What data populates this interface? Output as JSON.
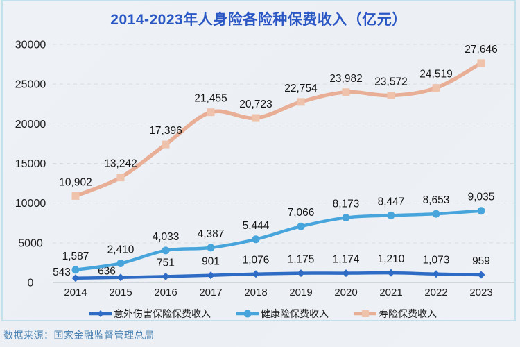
{
  "title": "2014-2023年人身险各险种保费收入（亿元）",
  "footer": {
    "source_text": "数据来源：国家金融监督管理总局"
  },
  "colors": {
    "title": "#2b57c5",
    "background": "#edf1f5",
    "card_border": "#c2e1eb",
    "grid": "#d8dcdf",
    "axis": "#c7cdd2",
    "tick_text": "#1f1f1f",
    "label_text": "#141414",
    "footer_text": "#4b82b2",
    "accident": "#2e6bc5",
    "health": "#48a5dc",
    "life": "#e8ae96",
    "life_marker_fill": "#efc2ac"
  },
  "chart_data": {
    "type": "line",
    "x": [
      "2014",
      "2015",
      "2016",
      "2017",
      "2018",
      "2019",
      "2020",
      "2021",
      "2022",
      "2023"
    ],
    "series": [
      {
        "name": "意外伤害保险保费收入",
        "marker": "diamond",
        "color_key": "accident",
        "values": [
          543,
          636,
          751,
          901,
          1076,
          1175,
          1174,
          1210,
          1073,
          959
        ],
        "labels": [
          "543",
          "636",
          "751",
          "901",
          "1,076",
          "1,175",
          "1,174",
          "1,210",
          "1,073",
          "959"
        ]
      },
      {
        "name": "健康险保费收入",
        "marker": "circle",
        "color_key": "health",
        "values": [
          1587,
          2410,
          4033,
          4387,
          5444,
          7066,
          8173,
          8447,
          8653,
          9035
        ],
        "labels": [
          "1,587",
          "2,410",
          "4,033",
          "4,387",
          "5,444",
          "7,066",
          "8,173",
          "8,447",
          "8,653",
          "9,035"
        ]
      },
      {
        "name": "寿险保费收入",
        "marker": "square",
        "color_key": "life",
        "values": [
          10902,
          13242,
          17396,
          21455,
          20723,
          22754,
          23982,
          23572,
          24519,
          27646
        ],
        "labels": [
          "10,902",
          "13,242",
          "17,396",
          "21,455",
          "20,723",
          "22,754",
          "23,982",
          "23,572",
          "24,519",
          "27,646"
        ]
      }
    ],
    "ylim": [
      0,
      30000
    ],
    "y_ticks": [
      0,
      5000,
      10000,
      15000,
      20000,
      25000,
      30000
    ],
    "grid": "horizontal dashed",
    "legend_position": "bottom"
  }
}
